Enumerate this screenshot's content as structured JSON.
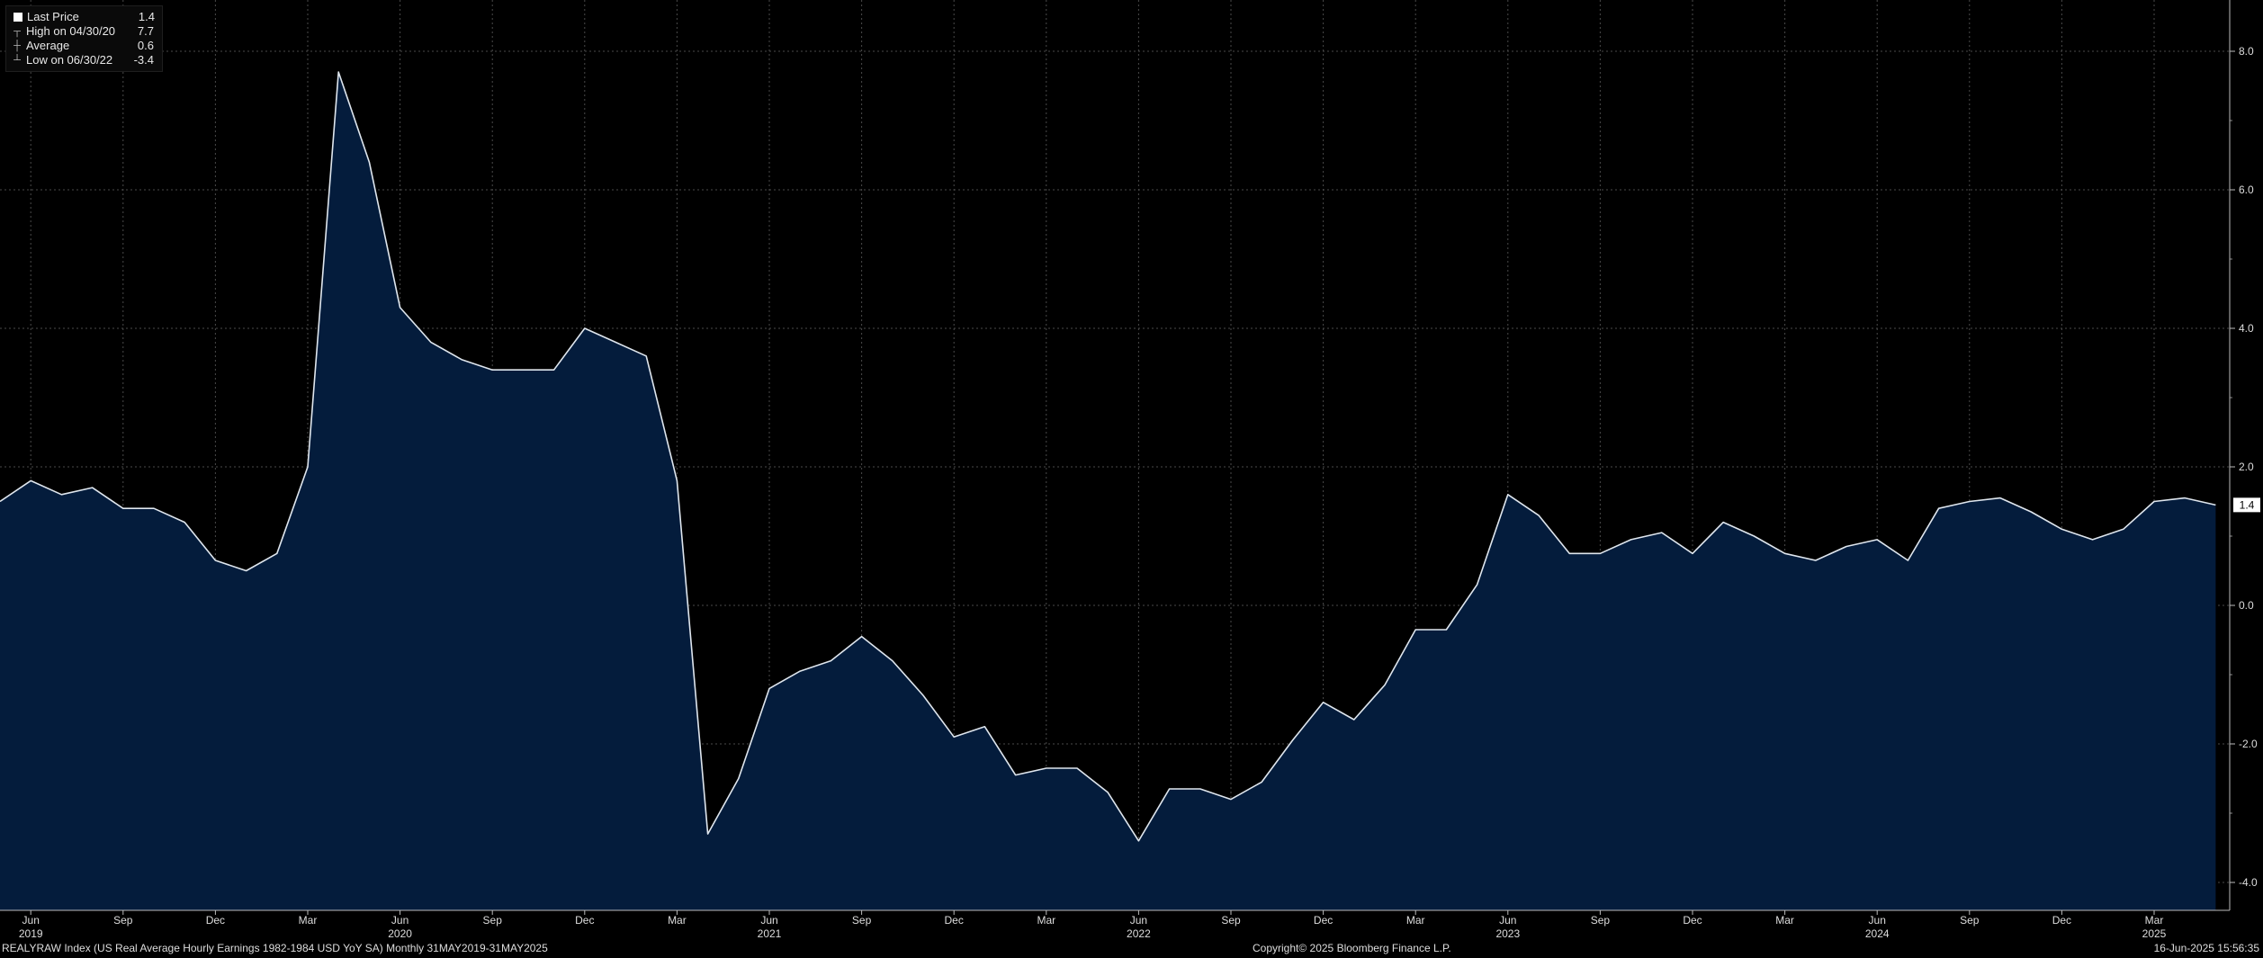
{
  "legend": {
    "items": [
      {
        "label": "Last Price",
        "value": "1.4"
      },
      {
        "label": "High on 04/30/20",
        "value": "7.7"
      },
      {
        "label": "Average",
        "value": "0.6"
      },
      {
        "label": "Low on 06/30/22",
        "value": "-3.4"
      }
    ]
  },
  "footer": {
    "left": "REALYRAW Index (US Real Average Hourly Earnings 1982-1984 USD YoY SA)  Monthly 31MAY2019-31MAY2025",
    "center": "Copyright© 2025 Bloomberg Finance L.P.",
    "right": "16-Jun-2025 15:56:35"
  },
  "colors": {
    "background": "#000000",
    "area_fill": "#041c3c",
    "line": "#dfe6ee",
    "grid": "#4a4a4a"
  },
  "chart_data": {
    "type": "area",
    "title": "",
    "xlabel": "",
    "ylabel": "",
    "x_start": "2019-05",
    "x_end": "2025-05",
    "frequency": "monthly",
    "ylim": [
      -4.4,
      8.7
    ],
    "y_ticks": [
      -4.0,
      -2.0,
      0.0,
      2.0,
      4.0,
      6.0,
      8.0
    ],
    "y_tick_labels": [
      "-4.0",
      "-2.0",
      "0.0",
      "2.0",
      "4.0",
      "6.0",
      "8.0"
    ],
    "month_ticks": [
      {
        "date": "2019-06",
        "label": "Jun"
      },
      {
        "date": "2019-09",
        "label": "Sep"
      },
      {
        "date": "2019-12",
        "label": "Dec"
      },
      {
        "date": "2020-03",
        "label": "Mar"
      },
      {
        "date": "2020-06",
        "label": "Jun"
      },
      {
        "date": "2020-09",
        "label": "Sep"
      },
      {
        "date": "2020-12",
        "label": "Dec"
      },
      {
        "date": "2021-03",
        "label": "Mar"
      },
      {
        "date": "2021-06",
        "label": "Jun"
      },
      {
        "date": "2021-09",
        "label": "Sep"
      },
      {
        "date": "2021-12",
        "label": "Dec"
      },
      {
        "date": "2022-03",
        "label": "Mar"
      },
      {
        "date": "2022-06",
        "label": "Jun"
      },
      {
        "date": "2022-09",
        "label": "Sep"
      },
      {
        "date": "2022-12",
        "label": "Dec"
      },
      {
        "date": "2023-03",
        "label": "Mar"
      },
      {
        "date": "2023-06",
        "label": "Jun"
      },
      {
        "date": "2023-09",
        "label": "Sep"
      },
      {
        "date": "2023-12",
        "label": "Dec"
      },
      {
        "date": "2024-03",
        "label": "Mar"
      },
      {
        "date": "2024-06",
        "label": "Jun"
      },
      {
        "date": "2024-09",
        "label": "Sep"
      },
      {
        "date": "2024-12",
        "label": "Dec"
      },
      {
        "date": "2025-03",
        "label": "Mar"
      }
    ],
    "year_labels": [
      {
        "date": "2019-06",
        "label": "2019"
      },
      {
        "date": "2020-06",
        "label": "2020"
      },
      {
        "date": "2021-06",
        "label": "2021"
      },
      {
        "date": "2022-06",
        "label": "2022"
      },
      {
        "date": "2023-06",
        "label": "2023"
      },
      {
        "date": "2024-06",
        "label": "2024"
      },
      {
        "date": "2025-03",
        "label": "2025"
      }
    ],
    "last_value_label": "1.4",
    "grid": true,
    "legend_position": "top-left",
    "series": [
      {
        "values": [
          1.5,
          1.8,
          1.6,
          1.7,
          1.4,
          1.4,
          1.2,
          0.65,
          0.5,
          0.75,
          2.0,
          7.7,
          6.4,
          4.3,
          3.8,
          3.55,
          3.4,
          3.4,
          3.4,
          4.0,
          3.8,
          3.6,
          1.8,
          -3.3,
          -2.5,
          -1.2,
          -0.95,
          -0.8,
          -0.45,
          -0.8,
          -1.3,
          -1.9,
          -1.75,
          -2.45,
          -2.35,
          -2.35,
          -2.7,
          -3.4,
          -2.65,
          -2.65,
          -2.8,
          -2.55,
          -1.95,
          -1.4,
          -1.65,
          -1.15,
          -0.35,
          -0.35,
          0.3,
          1.6,
          1.3,
          0.75,
          0.75,
          0.95,
          1.05,
          0.75,
          1.2,
          1.0,
          0.75,
          0.65,
          0.85,
          0.95,
          0.65,
          1.4,
          1.5,
          1.55,
          1.35,
          1.1,
          0.95,
          1.1,
          1.5,
          1.55,
          1.45
        ]
      }
    ]
  }
}
